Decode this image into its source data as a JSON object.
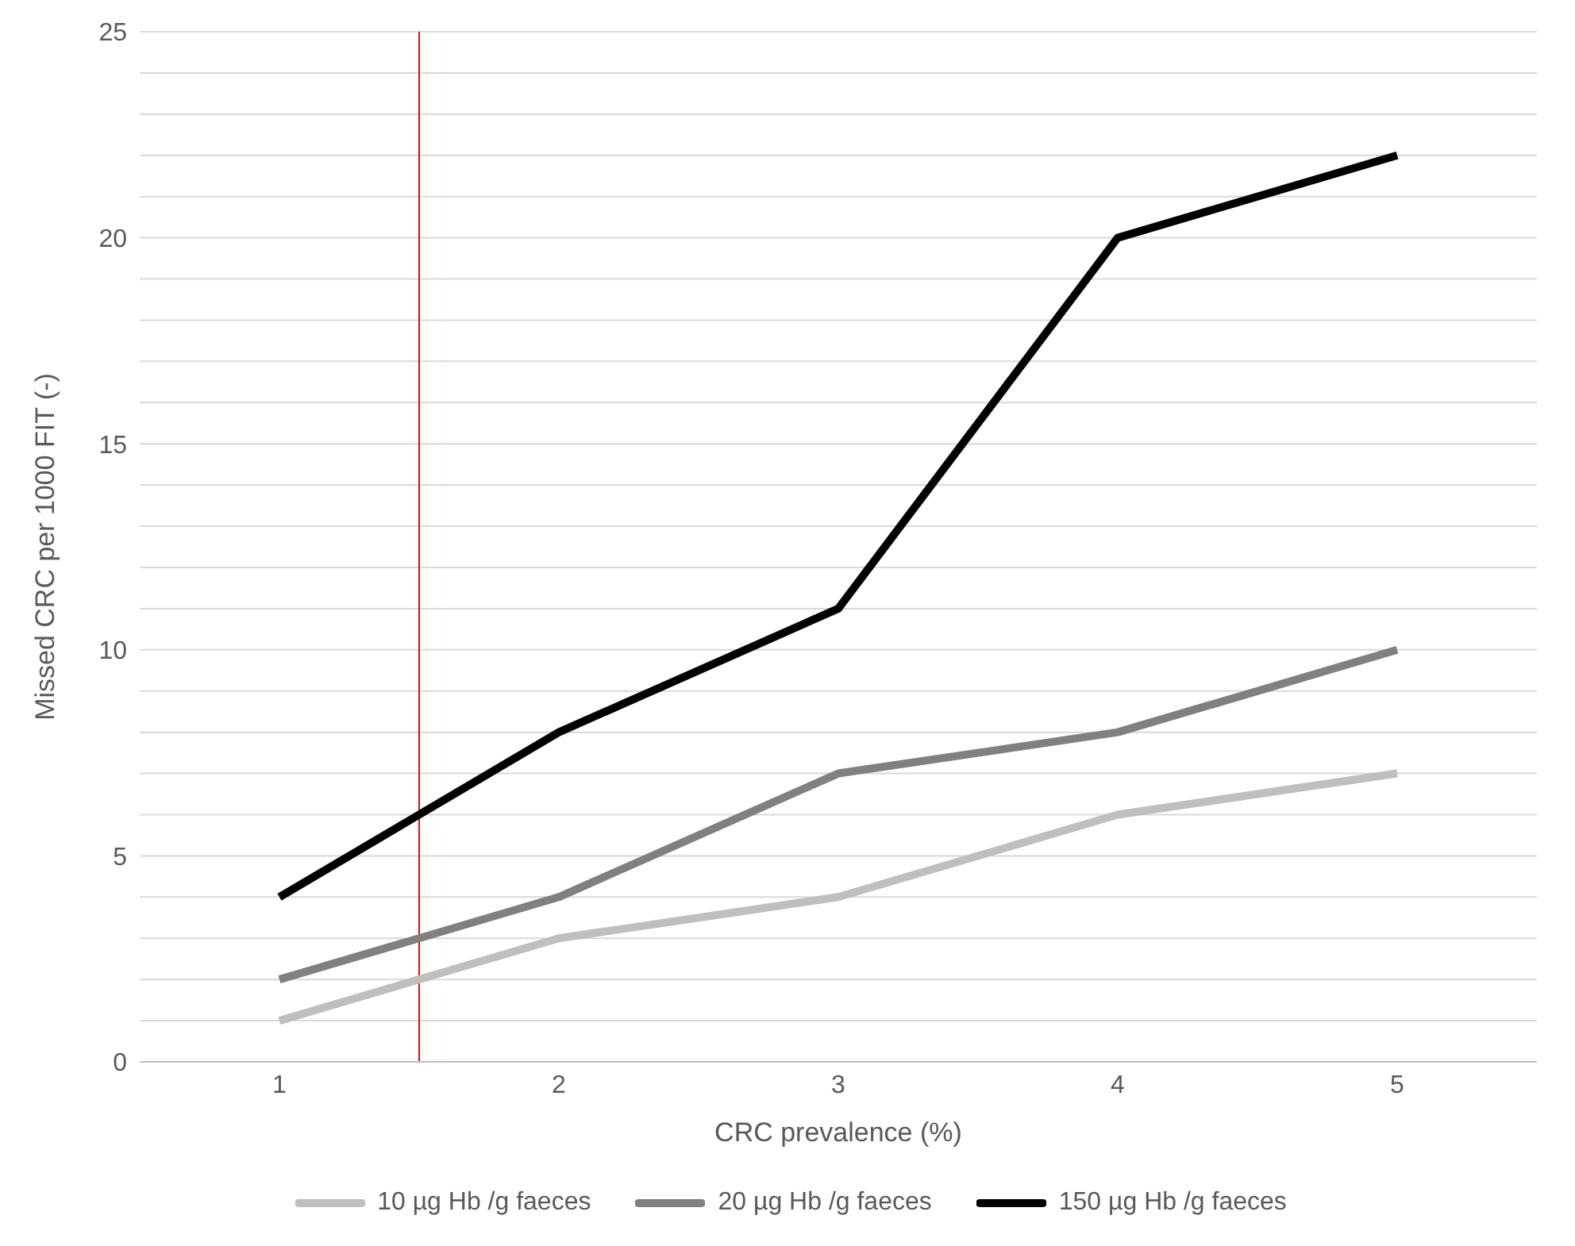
{
  "chart_data": {
    "type": "line",
    "xlabel": "CRC prevalence (%)",
    "ylabel": "Missed CRC per 1000 FIT (-)",
    "x": [
      1,
      2,
      3,
      4,
      5
    ],
    "xlim": [
      0.5,
      5.5
    ],
    "xticks": [
      1,
      2,
      3,
      4,
      5
    ],
    "ylim": [
      0,
      25
    ],
    "yticks": [
      0,
      {
        "value": 1,
        "label": null
      },
      {
        "value": 2,
        "label": null
      },
      {
        "value": 3,
        "label": null
      },
      {
        "value": 4,
        "label": null
      },
      5,
      {
        "value": 6,
        "label": null
      },
      {
        "value": 7,
        "label": null
      },
      {
        "value": 8,
        "label": null
      },
      {
        "value": 9,
        "label": null
      },
      10,
      {
        "value": 11,
        "label": null
      },
      {
        "value": 12,
        "label": null
      },
      {
        "value": 13,
        "label": null
      },
      {
        "value": 14,
        "label": null
      },
      15,
      {
        "value": 16,
        "label": null
      },
      {
        "value": 17,
        "label": null
      },
      {
        "value": 18,
        "label": null
      },
      {
        "value": 19,
        "label": null
      },
      20,
      {
        "value": 21,
        "label": null
      },
      {
        "value": 22,
        "label": null
      },
      {
        "value": 23,
        "label": null
      },
      {
        "value": 24,
        "label": null
      },
      25
    ],
    "grid": "y",
    "legend": "bottom",
    "marker": "none",
    "line_style": "solid",
    "series": [
      {
        "name": "10 µg Hb /g faeces",
        "color": "#bfbfbf",
        "values": [
          1,
          3,
          4,
          6,
          7
        ]
      },
      {
        "name": "20 µg Hb /g faeces",
        "color": "#808080",
        "values": [
          2,
          4,
          7,
          8,
          10
        ]
      },
      {
        "name": "150 µg Hb /g faeces",
        "color": "#000000",
        "values": [
          4,
          8,
          11,
          20,
          22
        ]
      }
    ],
    "ref_lines": [
      {
        "axis": "x",
        "value": 1.5,
        "color": "#ff0000"
      }
    ]
  }
}
